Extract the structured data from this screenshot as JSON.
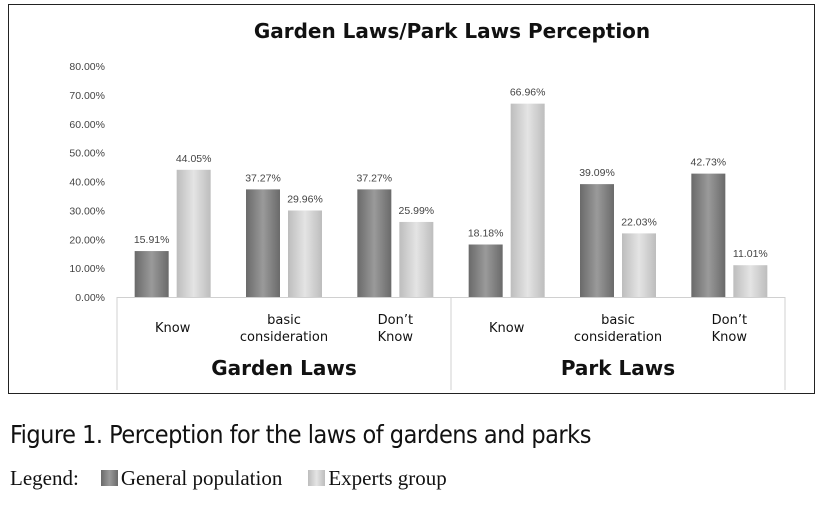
{
  "chart_data": {
    "type": "bar",
    "title": "Garden Laws/Park Laws Perception",
    "y_ticks": [
      "0.00%",
      "10.00%",
      "20.00%",
      "30.00%",
      "40.00%",
      "50.00%",
      "60.00%",
      "70.00%",
      "80.00%"
    ],
    "ylim": [
      0,
      80
    ],
    "groups": [
      {
        "name": "Garden Laws",
        "categories": [
          {
            "lines": [
              "Know"
            ],
            "values": [
              15.91,
              44.05
            ],
            "labels": [
              "15.91%",
              "44.05%"
            ]
          },
          {
            "lines": [
              "basic",
              "consideration"
            ],
            "values": [
              37.27,
              29.96
            ],
            "labels": [
              "37.27%",
              "29.96%"
            ]
          },
          {
            "lines": [
              "Don’t",
              "Know"
            ],
            "values": [
              37.27,
              25.99
            ],
            "labels": [
              "37.27%",
              "25.99%"
            ]
          }
        ]
      },
      {
        "name": "Park Laws",
        "categories": [
          {
            "lines": [
              "Know"
            ],
            "values": [
              18.18,
              66.96
            ],
            "labels": [
              "18.18%",
              "66.96%"
            ]
          },
          {
            "lines": [
              "basic",
              "consideration"
            ],
            "values": [
              39.09,
              22.03
            ],
            "labels": [
              "39.09%",
              "22.03%"
            ]
          },
          {
            "lines": [
              "Don’t",
              "Know"
            ],
            "values": [
              42.73,
              11.01
            ],
            "labels": [
              "42.73%",
              "11.01%"
            ]
          }
        ]
      }
    ],
    "series": [
      {
        "name": "General population",
        "color": "#7f7f7f"
      },
      {
        "name": "Experts group",
        "color": "#cccccc"
      }
    ],
    "grid": false
  },
  "caption": "Figure 1. Perception for the laws of gardens and parks",
  "legend": {
    "prefix": "Legend:",
    "items": [
      "General population",
      "Experts group"
    ]
  }
}
